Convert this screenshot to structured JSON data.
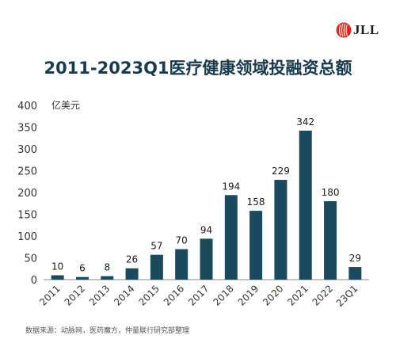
{
  "brand": {
    "logo_text": "JLL",
    "logo_color": "#e1251b"
  },
  "title": "2011-2023Q1医疗健康领域投融资总额",
  "source": "数据来源：动脉网，医药魔方，仲量联行研究部整理",
  "colors": {
    "bar": "#1b4a5e",
    "text": "#173a4f",
    "axis": "#333333"
  },
  "chart_data": {
    "type": "bar",
    "title": "2011-2023Q1医疗健康领域投融资总额",
    "ylabel": "亿美元",
    "xlabel": "",
    "ylim": [
      0,
      400
    ],
    "yticks": [
      0,
      50,
      100,
      150,
      200,
      250,
      300,
      350,
      400
    ],
    "categories": [
      "2011",
      "2012",
      "2013",
      "2014",
      "2015",
      "2016",
      "2017",
      "2018",
      "2019",
      "2020",
      "2021",
      "2022",
      "23Q1"
    ],
    "values": [
      10,
      6,
      8,
      26,
      57,
      70,
      94,
      194,
      158,
      229,
      342,
      180,
      29
    ],
    "grid": false,
    "legend": "none"
  }
}
